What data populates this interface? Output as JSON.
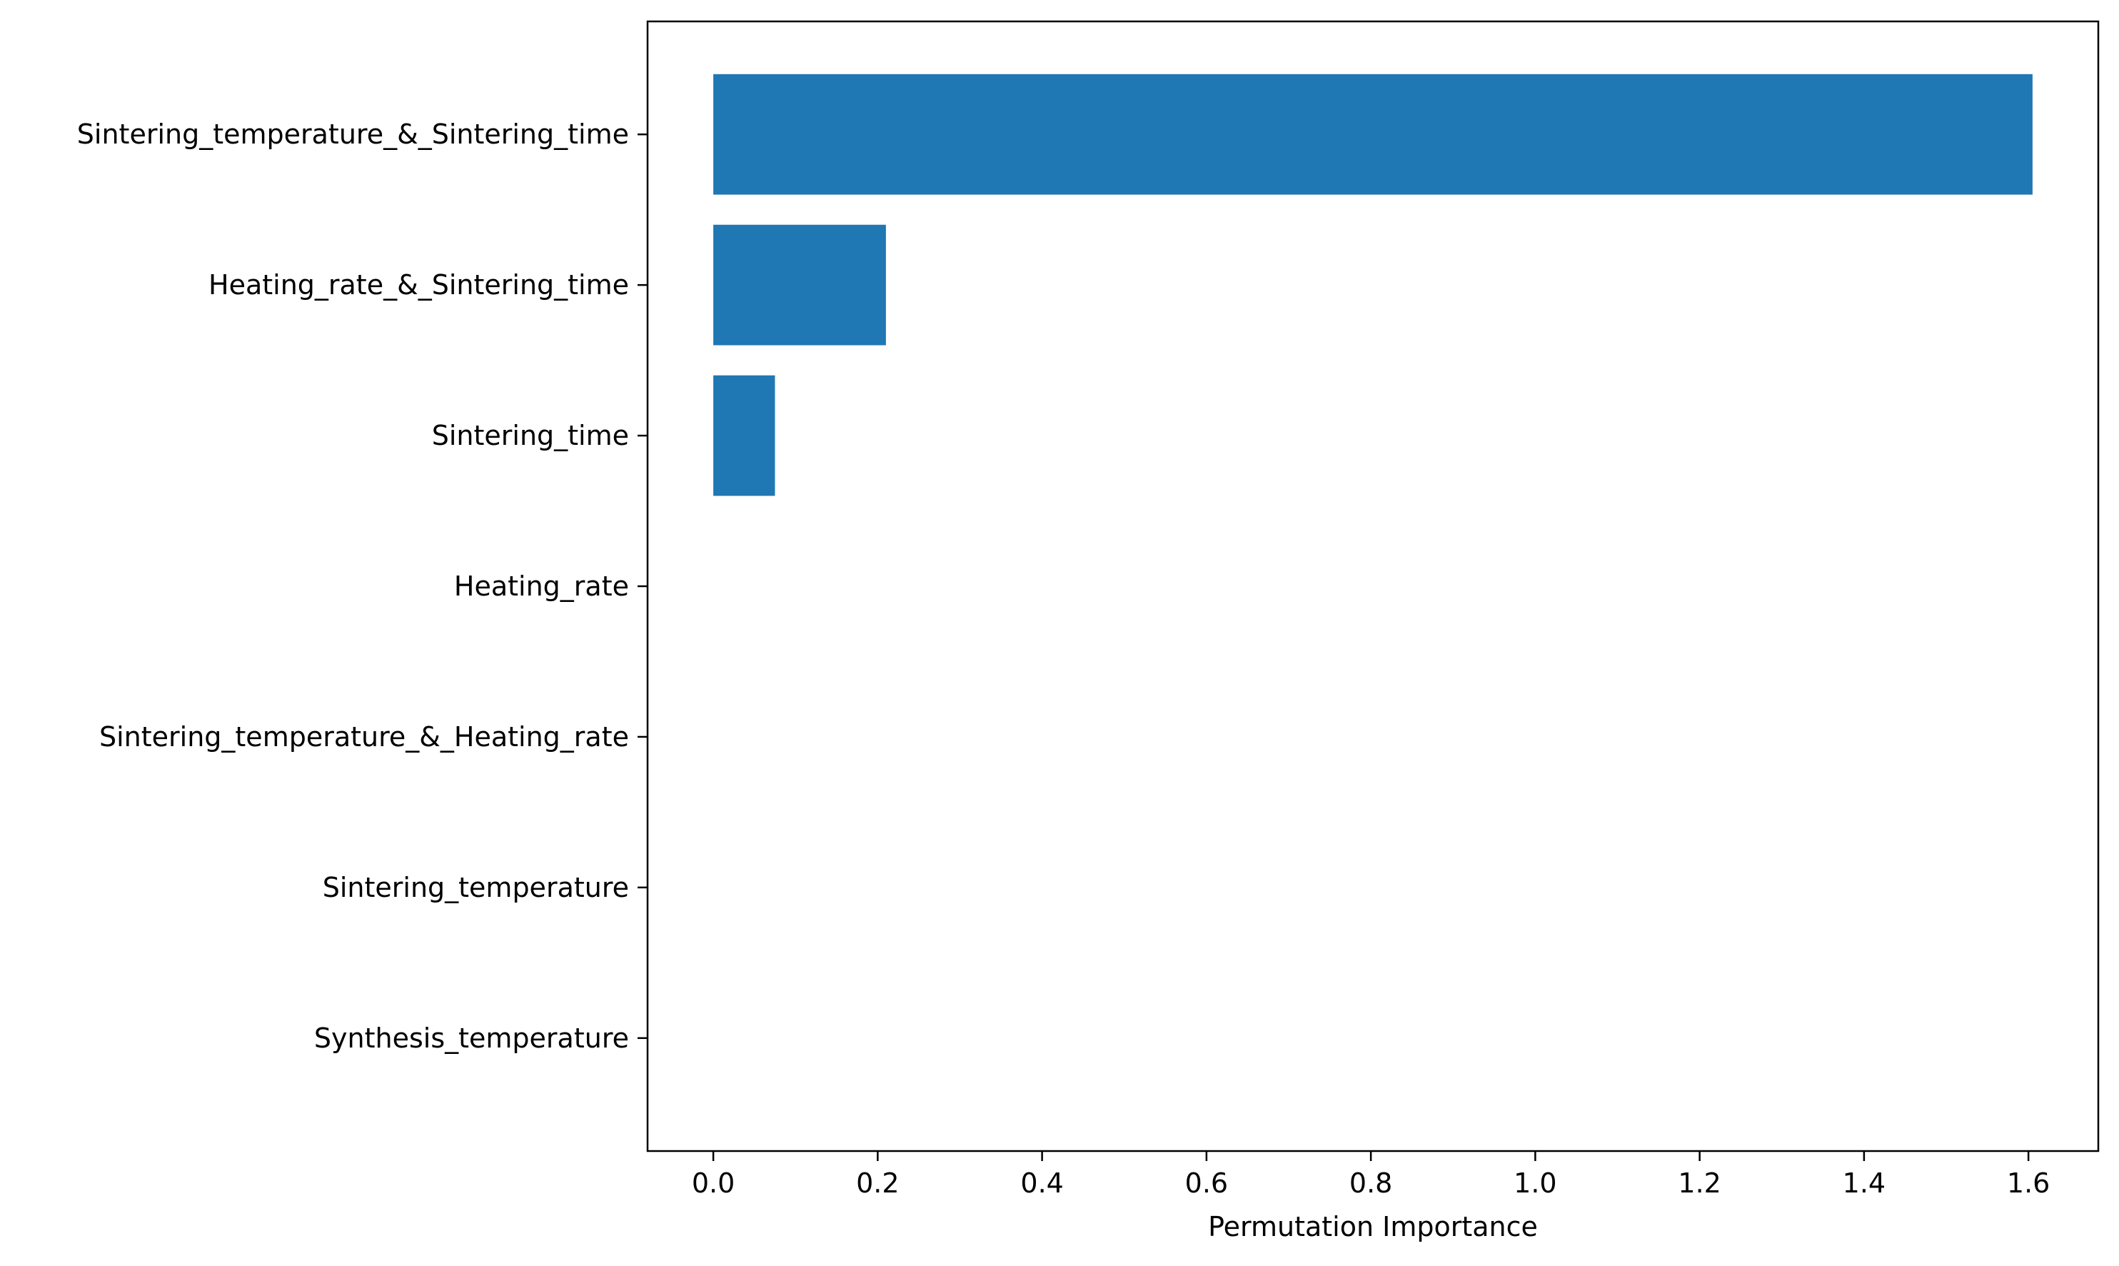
{
  "chart_data": {
    "type": "bar",
    "orientation": "horizontal",
    "title": "",
    "xlabel": "Permutation Importance",
    "ylabel": "",
    "categories": [
      "Sintering_temperature_&_Sintering_time",
      "Heating_rate_&_Sintering_time",
      "Sintering_time",
      "Heating_rate",
      "Sintering_temperature_&_Heating_rate",
      "Sintering_temperature",
      "Synthesis_temperature"
    ],
    "values": [
      1.605,
      0.21,
      0.075,
      0.0,
      0.0,
      0.0,
      0.0
    ],
    "xlim": [
      -0.08,
      1.685
    ],
    "xticks": [
      0.0,
      0.2,
      0.4,
      0.6,
      0.8,
      1.0,
      1.2,
      1.4,
      1.6
    ],
    "xtick_labels": [
      "0.0",
      "0.2",
      "0.4",
      "0.6",
      "0.8",
      "1.0",
      "1.2",
      "1.4",
      "1.6"
    ],
    "bar_color": "#1f77b4",
    "grid": false,
    "legend": "none"
  }
}
